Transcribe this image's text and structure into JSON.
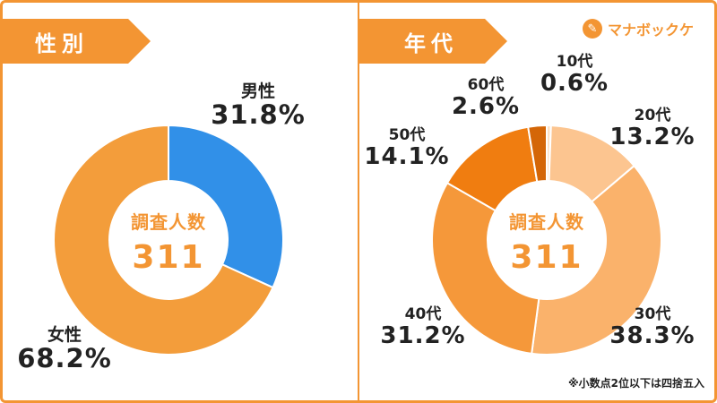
{
  "panels": {
    "gender": {
      "tag": "性別"
    },
    "age": {
      "tag": "年代"
    }
  },
  "center": {
    "label": "調査人数",
    "count": "311"
  },
  "brand": {
    "name": "マナボックケ"
  },
  "note": "※小数点2位以下は四捨五入",
  "colors": {
    "accent": "#f39533",
    "blue": "#3190e8"
  },
  "chart_data": [
    {
      "type": "pie",
      "title": "性別",
      "slices": [
        {
          "label": "男性",
          "value": 31.8,
          "display": "31.8%",
          "color": "#3190e8"
        },
        {
          "label": "女性",
          "value": 68.2,
          "display": "68.2%",
          "color": "#f39d3b"
        }
      ]
    },
    {
      "type": "pie",
      "title": "年代",
      "slices": [
        {
          "label": "10代",
          "value": 0.6,
          "display": "0.6%",
          "color": "#fde1c4"
        },
        {
          "label": "20代",
          "value": 13.2,
          "display": "13.2%",
          "color": "#fcc590"
        },
        {
          "label": "30代",
          "value": 38.3,
          "display": "38.3%",
          "color": "#fab26b"
        },
        {
          "label": "40代",
          "value": 31.2,
          "display": "31.2%",
          "color": "#f5983a"
        },
        {
          "label": "50代",
          "value": 14.1,
          "display": "14.1%",
          "color": "#f07d10"
        },
        {
          "label": "60代",
          "value": 2.6,
          "display": "2.6%",
          "color": "#d46607"
        }
      ]
    }
  ]
}
